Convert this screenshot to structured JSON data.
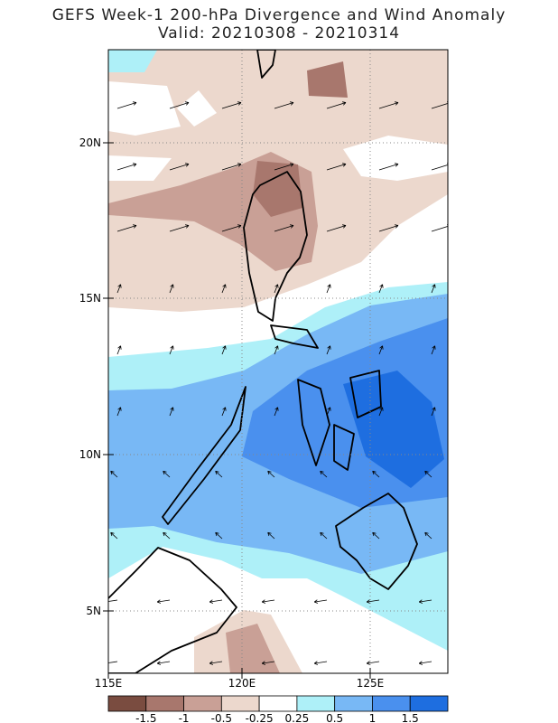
{
  "header": {
    "title": "GEFS Week-1 200-hPa Divergence and Wind Anomaly",
    "subtitle": "Valid: 20210308 - 20210314"
  },
  "map": {
    "lat_labels": [
      "20N",
      "15N",
      "10N",
      "5N"
    ],
    "lon_labels": [
      "115E",
      "120E",
      "125E"
    ]
  },
  "legend": {
    "colors": [
      "#7a4c40",
      "#a8776d",
      "#c9a096",
      "#ecd8cd",
      "#ffffff",
      "#aef0f8",
      "#78b8f5",
      "#4a90ee",
      "#1e6ee0"
    ],
    "labels": [
      "-1.5",
      "-1",
      "-0.5",
      "-0.25",
      "0.25",
      "0.5",
      "1",
      "1.5"
    ]
  }
}
